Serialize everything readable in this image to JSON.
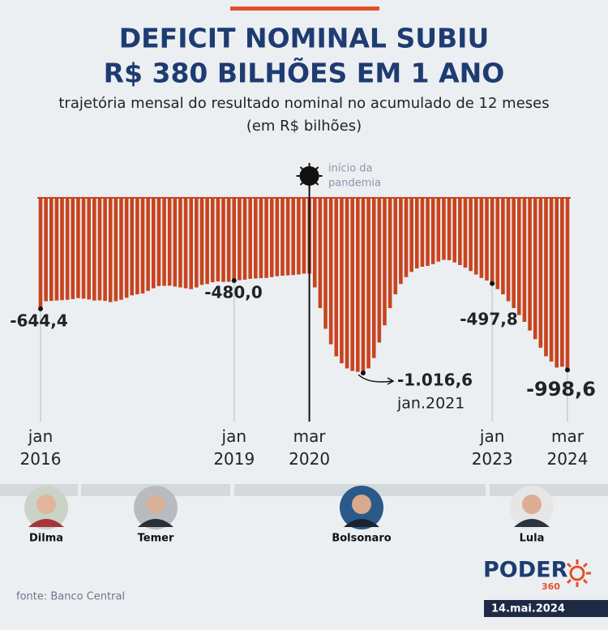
{
  "chart_data": {
    "type": "bar",
    "title": [
      "DEFICIT NOMINAL SUBIU",
      "R$ 380 BILHÕES EM 1 ANO"
    ],
    "subtitle": [
      "trajetória mensal do resultado nominal no acumulado de 12 meses",
      "(em R$ bilhões)"
    ],
    "color": "#c8431f",
    "categories": [
      "jan 2016",
      null,
      null,
      null,
      null,
      null,
      null,
      null,
      null,
      null,
      null,
      null,
      null,
      null,
      null,
      null,
      null,
      null,
      null,
      null,
      null,
      null,
      null,
      null,
      null,
      null,
      null,
      null,
      null,
      null,
      null,
      null,
      null,
      null,
      null,
      null,
      "jan 2019",
      null,
      null,
      null,
      null,
      null,
      null,
      null,
      null,
      null,
      null,
      null,
      null,
      null,
      "mar 2020",
      null,
      null,
      null,
      null,
      null,
      null,
      null,
      null,
      null,
      null,
      null,
      null,
      null,
      null,
      null,
      null,
      null,
      null,
      null,
      null,
      null,
      null,
      null,
      null,
      null,
      null,
      null,
      null,
      null,
      null,
      null,
      null,
      null,
      "jan 2023",
      null,
      null,
      null,
      null,
      null,
      null,
      null,
      null,
      null,
      null,
      null,
      null,
      null,
      "mar 2024"
    ],
    "values": [
      -644.4,
      -600,
      -598,
      -596,
      -594,
      -592,
      -588,
      -582,
      -585,
      -590,
      -596,
      -595,
      -598,
      -605,
      -600,
      -592,
      -580,
      -566,
      -560,
      -555,
      -540,
      -525,
      -512,
      -511,
      -510,
      -515,
      -520,
      -525,
      -530,
      -520,
      -505,
      -500,
      -490,
      -485,
      -488,
      -487,
      -480.0,
      -478,
      -475,
      -470,
      -468,
      -466,
      -465,
      -460,
      -455,
      -452,
      -450,
      -448,
      -445,
      -440,
      -440,
      -520,
      -640,
      -760,
      -850,
      -920,
      -960,
      -990,
      -1005,
      -1010,
      -1016.6,
      -990,
      -930,
      -840,
      -740,
      -640,
      -560,
      -500,
      -460,
      -430,
      -410,
      -400,
      -395,
      -385,
      -370,
      -360,
      -362,
      -375,
      -390,
      -405,
      -425,
      -445,
      -465,
      -480,
      -497.8,
      -530,
      -560,
      -600,
      -640,
      -680,
      -720,
      -770,
      -820,
      -870,
      -920,
      -950,
      -985,
      -980,
      -998.6
    ],
    "value_labels": [
      "-644,4",
      null,
      null,
      null,
      null,
      null,
      null,
      null,
      null,
      null,
      null,
      null,
      null,
      null,
      null,
      null,
      null,
      null,
      null,
      null,
      null,
      null,
      null,
      null,
      null,
      null,
      null,
      null,
      null,
      null,
      null,
      null,
      null,
      null,
      null,
      null,
      "-480,0",
      null,
      null,
      null,
      null,
      null,
      null,
      null,
      null,
      null,
      null,
      null,
      null,
      null,
      null,
      null,
      null,
      null,
      null,
      null,
      null,
      null,
      null,
      null,
      "-1.016,6",
      null,
      null,
      null,
      null,
      null,
      null,
      null,
      null,
      null,
      null,
      null,
      null,
      null,
      null,
      null,
      null,
      null,
      null,
      null,
      null,
      null,
      null,
      null,
      "-497,8",
      null,
      null,
      null,
      null,
      null,
      null,
      null,
      null,
      null,
      null,
      null,
      null,
      null,
      "-998,6"
    ],
    "min_note": "jan.2021",
    "pandemic_note": [
      "início da",
      "pandemia"
    ],
    "presidents": [
      "Dilma",
      "Temer",
      "Bolsonaro",
      "Lula"
    ],
    "source": "fonte: Banco Central",
    "logo": [
      "PODER",
      "360"
    ],
    "date": "14.mai.2024"
  }
}
